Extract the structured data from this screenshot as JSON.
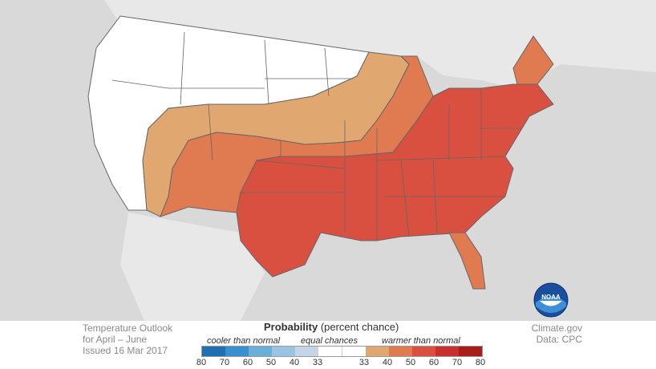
{
  "outlook": {
    "title": "Temperature Outlook",
    "period": "for April – June",
    "issued": "Issued 16 Mar 2017"
  },
  "credits": {
    "site": "Climate.gov",
    "data": "Data: CPC"
  },
  "legend": {
    "title_bold": "Probability",
    "title_rest": "(percent chance)",
    "cooler_label": "cooler than normal",
    "equal_label": "equal chances",
    "warmer_label": "warmer than normal",
    "ticks": [
      "80",
      "70",
      "60",
      "50",
      "40",
      "33",
      "33",
      "40",
      "50",
      "60",
      "70",
      "80"
    ],
    "colors": [
      "#1f6fb2",
      "#3a8fd0",
      "#6aaedc",
      "#9cc4e2",
      "#c4d5e6",
      "#ffffff",
      "#ffffff",
      "#e0a870",
      "#e07a50",
      "#d95040",
      "#c83030",
      "#a81c1c"
    ]
  },
  "map_colors": {
    "background": "#d9d9d9",
    "equal_chances": "#ffffff",
    "prob_33_40": "#e0a870",
    "prob_40_50": "#e07a50",
    "prob_50_60": "#d95040",
    "borders": "#555555"
  },
  "logo": {
    "icon": "noaa-logo-icon"
  }
}
